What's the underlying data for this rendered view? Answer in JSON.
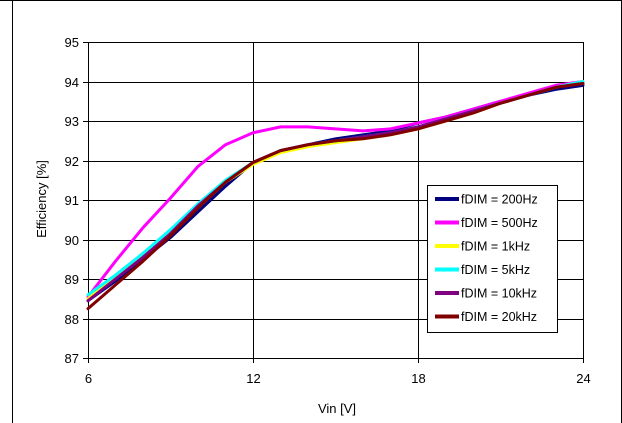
{
  "chart_data": {
    "type": "line",
    "title": "",
    "xlabel": "Vin [V]",
    "ylabel": "Efficiency [%]",
    "xlim": [
      6,
      24
    ],
    "ylim": [
      87,
      95
    ],
    "xticks": [
      "6",
      "12",
      "18",
      "24"
    ],
    "yticks": [
      "87",
      "88",
      "89",
      "90",
      "91",
      "92",
      "93",
      "94",
      "95"
    ],
    "grid": true,
    "legend_position": "right",
    "x": [
      6,
      7,
      8,
      9,
      10,
      11,
      12,
      13,
      14,
      15,
      16,
      17,
      18,
      19,
      20,
      21,
      22,
      23,
      24
    ],
    "series": [
      {
        "name": "fDIM = 200Hz",
        "color": "#000080",
        "values": [
          88.45,
          88.95,
          89.5,
          90.05,
          90.7,
          91.35,
          91.95,
          92.25,
          92.4,
          92.55,
          92.65,
          92.75,
          92.95,
          93.1,
          93.3,
          93.5,
          93.65,
          93.8,
          93.9
        ]
      },
      {
        "name": "fDIM = 500Hz",
        "color": "#ff00ff",
        "values": [
          88.55,
          89.45,
          90.3,
          91.05,
          91.85,
          92.4,
          92.7,
          92.85,
          92.85,
          92.8,
          92.75,
          92.8,
          92.95,
          93.1,
          93.3,
          93.5,
          93.7,
          93.9,
          94.0
        ]
      },
      {
        "name": "fDIM = 1kHz",
        "color": "#ffff00",
        "values": [
          88.5,
          89.05,
          89.6,
          90.2,
          90.85,
          91.45,
          91.9,
          92.2,
          92.35,
          92.45,
          92.55,
          92.65,
          92.8,
          93.0,
          93.2,
          93.45,
          93.65,
          93.85,
          94.0
        ]
      },
      {
        "name": "fDIM = 5kHz",
        "color": "#00ffff",
        "values": [
          88.6,
          89.1,
          89.65,
          90.25,
          90.9,
          91.5,
          91.95,
          92.25,
          92.4,
          92.5,
          92.6,
          92.7,
          92.85,
          93.05,
          93.25,
          93.45,
          93.65,
          93.85,
          94.0
        ]
      },
      {
        "name": "fDIM = 10kHz",
        "color": "#800080",
        "values": [
          88.45,
          89.0,
          89.55,
          90.15,
          90.85,
          91.45,
          91.95,
          92.25,
          92.4,
          92.5,
          92.6,
          92.7,
          92.85,
          93.05,
          93.25,
          93.45,
          93.65,
          93.85,
          93.95
        ]
      },
      {
        "name": "fDIM = 20kHz",
        "color": "#800000",
        "values": [
          88.25,
          88.85,
          89.45,
          90.1,
          90.8,
          91.45,
          91.95,
          92.25,
          92.4,
          92.5,
          92.55,
          92.65,
          92.8,
          93.0,
          93.2,
          93.45,
          93.65,
          93.85,
          93.95
        ]
      }
    ]
  }
}
